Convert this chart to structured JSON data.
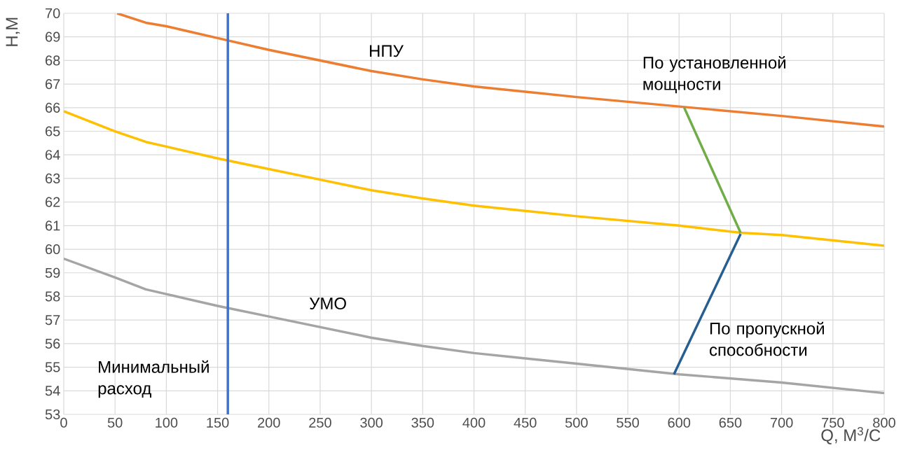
{
  "chart_data": {
    "type": "line",
    "xlabel": "Q, М$^{3}$/С",
    "ylabel": "Н,М",
    "xlim": [
      0,
      800
    ],
    "ylim": [
      53,
      70
    ],
    "xticks": [
      0,
      50,
      100,
      150,
      200,
      250,
      300,
      350,
      400,
      450,
      500,
      550,
      600,
      650,
      700,
      750,
      800
    ],
    "yticks": [
      53,
      54,
      55,
      56,
      57,
      58,
      59,
      60,
      61,
      62,
      63,
      64,
      65,
      66,
      67,
      68,
      69,
      70
    ],
    "grid": true,
    "legend": false,
    "marker": "none",
    "line_style": "solid",
    "series": [
      {
        "name": "НПУ",
        "color": "#ed7d31",
        "x": [
          52,
          80,
          100,
          150,
          200,
          250,
          300,
          350,
          400,
          500,
          600,
          700,
          800
        ],
        "values": [
          70.0,
          69.6,
          69.45,
          68.95,
          68.45,
          68.0,
          67.55,
          67.2,
          66.9,
          66.45,
          66.05,
          65.65,
          65.2
        ]
      },
      {
        "color": "#ffc000",
        "x": [
          0,
          50,
          80,
          100,
          150,
          200,
          250,
          300,
          350,
          400,
          500,
          600,
          660,
          700,
          800
        ],
        "values": [
          65.85,
          65.0,
          64.55,
          64.35,
          63.85,
          63.4,
          62.95,
          62.5,
          62.15,
          61.85,
          61.4,
          61.0,
          60.7,
          60.6,
          60.15
        ]
      },
      {
        "name": "УМО",
        "color": "#a5a5a5",
        "x": [
          0,
          50,
          80,
          100,
          150,
          200,
          250,
          300,
          350,
          400,
          500,
          600,
          700,
          800
        ],
        "values": [
          59.6,
          58.8,
          58.3,
          58.1,
          57.6,
          57.15,
          56.7,
          56.25,
          55.9,
          55.6,
          55.15,
          54.7,
          54.35,
          53.9
        ]
      },
      {
        "name": "По установленной мощности",
        "color": "#70ad47",
        "x": [
          605,
          660
        ],
        "values": [
          66.0,
          60.7
        ]
      },
      {
        "name": "По пропускной способности",
        "color": "#255e91",
        "x": [
          660,
          595
        ],
        "values": [
          60.65,
          54.7
        ]
      }
    ],
    "ref_lines": [
      {
        "axis": "x",
        "value": 160,
        "color": "#4472c4",
        "label": "Минимальный расход"
      }
    ]
  }
}
